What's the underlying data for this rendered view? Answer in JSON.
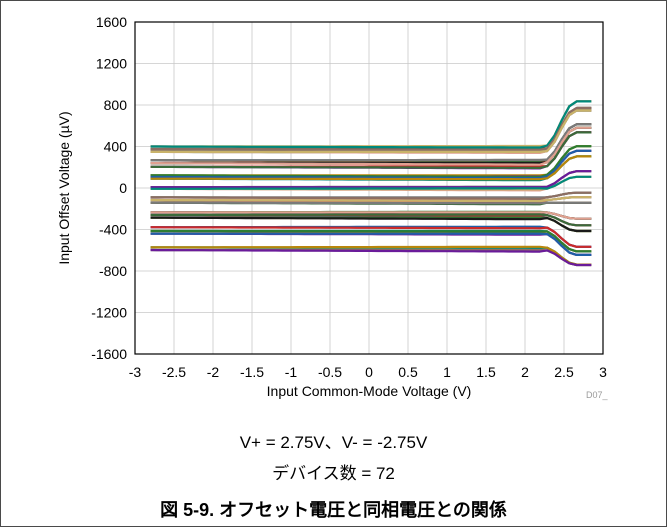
{
  "chart_data": {
    "type": "line",
    "xlabel": "Input Common-Mode Voltage (V)",
    "ylabel": "Input Offset Voltage (µV)",
    "xlim": [
      -3,
      3
    ],
    "ylim": [
      -1600,
      1600
    ],
    "x_ticks": [
      "-3",
      "-2.5",
      "-2",
      "-1.5",
      "-1",
      "-0.5",
      "0",
      "0.5",
      "1",
      "1.5",
      "2",
      "2.5",
      "3"
    ],
    "y_ticks": [
      "1600",
      "1200",
      "800",
      "400",
      "0",
      "-400",
      "-800",
      "-1200",
      "-1600"
    ],
    "grid": "on",
    "curve_count": 72,
    "x_range_of_curves": [
      -2.8,
      2.85
    ],
    "series_endpoints": [
      {
        "y_start": 430,
        "y_end": 880
      },
      {
        "y_start": 380,
        "y_end": 780
      },
      {
        "y_start": 330,
        "y_end": 720
      },
      {
        "y_start": 290,
        "y_end": 650
      },
      {
        "y_start": 240,
        "y_end": 580
      },
      {
        "y_start": 180,
        "y_end": 500
      },
      {
        "y_start": 140,
        "y_end": 430
      },
      {
        "y_start": 100,
        "y_end": 350
      },
      {
        "y_start": 60,
        "y_end": 260
      },
      {
        "y_start": 20,
        "y_end": 180
      },
      {
        "y_start": -20,
        "y_end": 90
      },
      {
        "y_start": -60,
        "y_end": 0
      },
      {
        "y_start": -110,
        "y_end": -80
      },
      {
        "y_start": -160,
        "y_end": -170
      },
      {
        "y_start": -210,
        "y_end": -260
      },
      {
        "y_start": -260,
        "y_end": -360
      },
      {
        "y_start": -310,
        "y_end": -450
      },
      {
        "y_start": -360,
        "y_end": -540
      },
      {
        "y_start": -420,
        "y_end": -620
      },
      {
        "y_start": -470,
        "y_end": -690
      },
      {
        "y_start": -560,
        "y_end": -720
      },
      {
        "y_start": -610,
        "y_end": -760
      }
    ]
  },
  "note_line1": "V+ = 2.75V、V- = -2.75V",
  "note_line2": "デバイス数 = 72",
  "plot_id": "D07_",
  "caption": "図 5-9. オフセット電圧と同相電圧との関係",
  "colors": [
    "#1a1a1a",
    "#cc2a2a",
    "#2e7d32",
    "#1f5fa8",
    "#b8860b",
    "#6a1b9a",
    "#00897b",
    "#8d6e63",
    "#c9b36a",
    "#7a7a7a",
    "#e0a090",
    "#3a6b3a"
  ]
}
